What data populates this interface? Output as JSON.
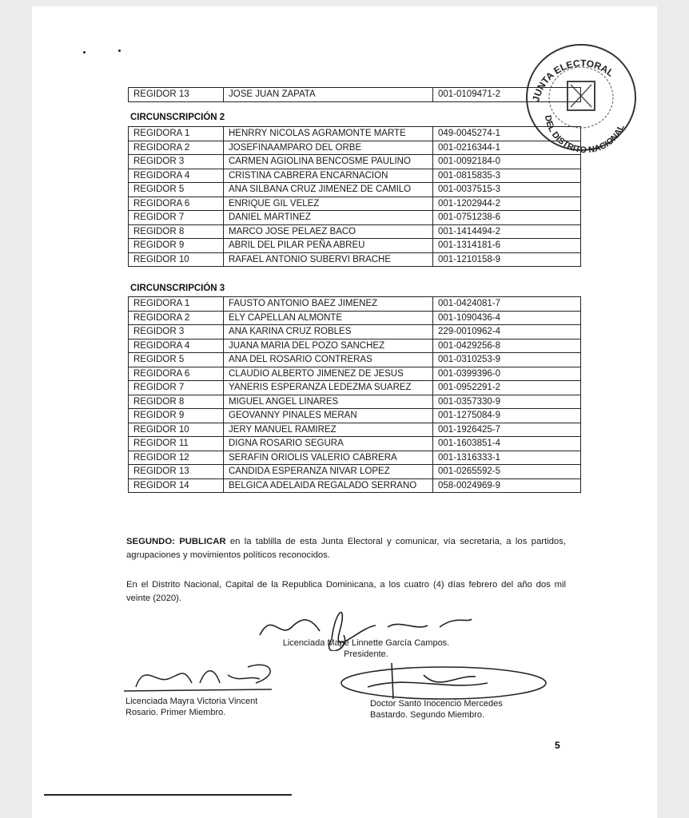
{
  "top_row": {
    "role": "REGIDOR 13",
    "name": "JOSE JUAN ZAPATA",
    "id": "001-0109471-2"
  },
  "seal": {
    "text_top": "JUNTA ELECTORAL",
    "text_bottom": "DEL DISTRITO NACIONAL"
  },
  "sections": [
    {
      "title": "CIRCUNSCRIPCIÓN 2",
      "rows": [
        {
          "role": "REGIDORA 1",
          "name": "HENRRY NICOLAS AGRAMONTE MARTE",
          "id": "049-0045274-1"
        },
        {
          "role": "REGIDORA 2",
          "name": "JOSEFINAAMPARO DEL ORBE",
          "id": "001-0216344-1"
        },
        {
          "role": "REGIDOR 3",
          "name": "CARMEN AGIOLINA BENCOSME PAULINO",
          "id": "001-0092184-0"
        },
        {
          "role": "REGIDORA 4",
          "name": "CRISTINA CABRERA ENCARNACION",
          "id": "001-0815835-3"
        },
        {
          "role": "REGIDOR 5",
          "name": "ANA SILBANA CRUZ JIMENEZ DE CAMILO",
          "id": "001-0037515-3"
        },
        {
          "role": "REGIDORA 6",
          "name": "ENRIQUE GIL VELEZ",
          "id": "001-1202944-2"
        },
        {
          "role": "REGIDOR 7",
          "name": "DANIEL MARTINEZ",
          "id": "001-0751238-6"
        },
        {
          "role": "REGIDOR 8",
          "name": "MARCO JOSE PELAEZ BACO",
          "id": "001-1414494-2"
        },
        {
          "role": "REGIDOR 9",
          "name": "ABRIL DEL PILAR PEÑA ABREU",
          "id": "001-1314181-6"
        },
        {
          "role": "REGIDOR 10",
          "name": "RAFAEL ANTONIO SUBERVI BRACHE",
          "id": "001-1210158-9"
        }
      ]
    },
    {
      "title": "CIRCUNSCRIPCIÓN 3",
      "rows": [
        {
          "role": "REGIDORA 1",
          "name": "FAUSTO ANTONIO BAEZ JIMENEZ",
          "id": "001-0424081-7"
        },
        {
          "role": "REGIDORA 2",
          "name": "ELY CAPELLAN ALMONTE",
          "id": "001-1090436-4"
        },
        {
          "role": "REGIDOR 3",
          "name": "ANA KARINA CRUZ ROBLES",
          "id": "229-0010962-4"
        },
        {
          "role": "REGIDORA 4",
          "name": "JUANA MARIA DEL POZO SANCHEZ",
          "id": "001-0429256-8"
        },
        {
          "role": "REGIDOR 5",
          "name": "ANA DEL ROSARIO CONTRERAS",
          "id": "001-0310253-9"
        },
        {
          "role": "REGIDORA 6",
          "name": "CLAUDIO ALBERTO JIMENEZ DE JESUS",
          "id": "001-0399396-0"
        },
        {
          "role": "REGIDOR 7",
          "name": "YANERIS ESPERANZA LEDEZMA SUAREZ",
          "id": "001-0952291-2"
        },
        {
          "role": "REGIDOR 8",
          "name": "MIGUEL ANGEL LINARES",
          "id": "001-0357330-9"
        },
        {
          "role": "REGIDOR 9",
          "name": "GEOVANNY PINALES MERAN",
          "id": "001-1275084-9"
        },
        {
          "role": "REGIDOR 10",
          "name": "JERY MANUEL RAMIREZ",
          "id": "001-1926425-7"
        },
        {
          "role": "REGIDOR 11",
          "name": "DIGNA ROSARIO SEGURA",
          "id": "001-1603851-4"
        },
        {
          "role": "REGIDOR 12",
          "name": "SERAFIN ORIOLIS VALERIO CABRERA",
          "id": "001-1316333-1"
        },
        {
          "role": "REGIDOR 13",
          "name": "CANDIDA ESPERANZA NIVAR LOPEZ",
          "id": "001-0265592-5"
        },
        {
          "role": "REGIDOR 14",
          "name": "BELGICA ADELAIDA REGALADO SERRANO",
          "id": "058-0024969-9"
        }
      ]
    }
  ],
  "segundo": {
    "label": "SEGUNDO: PUBLICAR",
    "text": " en la tablilla de esta Junta Electoral y comunicar, vía secretaria, a los partidos, agrupaciones y movimientos políticos reconocidos."
  },
  "closing": "En el Distrito Nacional, Capital de la Republica Dominicana, a los cuatro (4) días febrero del año dos mil veinte (2020).",
  "signatories": [
    {
      "name": "Licenciada Mape Linnette García Campos.",
      "title": "Presidente."
    },
    {
      "name": "Licenciada Mayra Victoria Vincent",
      "title": "Rosario. Primer Miembro."
    },
    {
      "name": "Doctor Santo Inocencio Mercedes",
      "title": "Bastardo. Segundo Miembro."
    }
  ],
  "page_number": "5"
}
